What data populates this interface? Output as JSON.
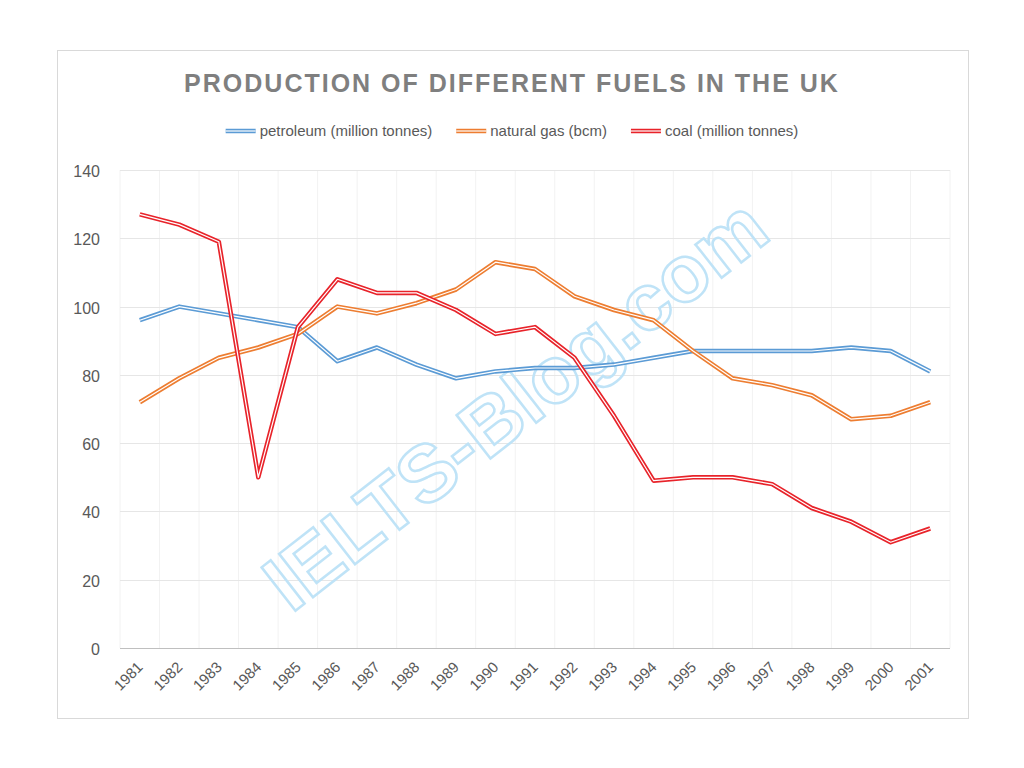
{
  "chart_data": {
    "type": "line",
    "title": "PRODUCTION OF DIFFERENT FUELS IN THE UK",
    "watermark": "IELTS-Blog.com",
    "categories": [
      "1981",
      "1982",
      "1983",
      "1984",
      "1985",
      "1986",
      "1987",
      "1988",
      "1989",
      "1990",
      "1991",
      "1992",
      "1993",
      "1994",
      "1995",
      "1996",
      "1997",
      "1998",
      "1999",
      "2000",
      "2001"
    ],
    "series": [
      {
        "name": "petroleum (million tonnes)",
        "color": "#5b9bd5",
        "line_style": "double",
        "values": [
          96,
          100,
          98,
          96,
          94,
          84,
          88,
          83,
          79,
          81,
          82,
          82,
          83,
          85,
          87,
          87,
          87,
          87,
          88,
          87,
          81
        ]
      },
      {
        "name": "natural gas (bcm)",
        "color": "#ed7d31",
        "line_style": "double",
        "values": [
          72,
          79,
          85,
          88,
          92,
          100,
          98,
          101,
          105,
          113,
          111,
          103,
          99,
          96,
          87,
          79,
          77,
          74,
          67,
          68,
          72
        ]
      },
      {
        "name": "coal (million tonnes)",
        "color": "#e8232a",
        "line_style": "double",
        "values": [
          127,
          124,
          119,
          50,
          94,
          108,
          104,
          104,
          99,
          92,
          94,
          85,
          68,
          49,
          50,
          50,
          48,
          41,
          37,
          31,
          35
        ]
      }
    ],
    "ylim": [
      0,
      140
    ],
    "yticks": [
      0,
      20,
      40,
      60,
      80,
      100,
      120,
      140
    ],
    "grid": true,
    "legend": "top"
  }
}
